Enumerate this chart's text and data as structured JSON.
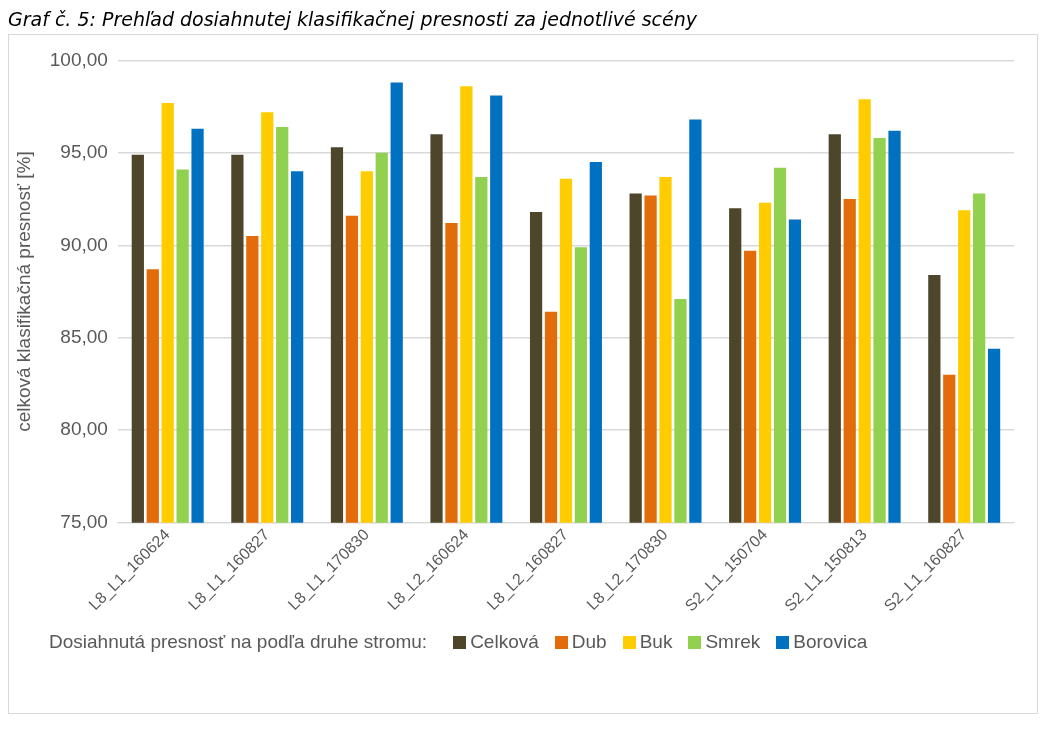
{
  "chart_data": {
    "type": "bar",
    "title": "Graf č. 5: Prehľad dosiahnutej klasifikačnej presnosti za jednotlivé scény",
    "ylabel": "celková klasifikačná presnosť [%]",
    "legend_title": "Dosiahnutá presnosť na podľa druhe stromu:",
    "categories": [
      "L8_L1_160624",
      "L8_L1_160827",
      "L8_L1_170830",
      "L8_L2_160624",
      "L8_L2_160827",
      "L8_L2_170830",
      "S2_L1_150704",
      "S2_L1_150813",
      "S2_L1_160827"
    ],
    "series": [
      {
        "name": "Celková",
        "color": "#4d462b",
        "values": [
          94.9,
          94.9,
          95.3,
          96.0,
          91.8,
          92.8,
          92.0,
          96.0,
          88.4
        ]
      },
      {
        "name": "Dub",
        "color": "#e36c0a",
        "values": [
          88.7,
          90.5,
          91.6,
          91.2,
          86.4,
          92.7,
          89.7,
          92.5,
          83.0
        ]
      },
      {
        "name": "Buk",
        "color": "#ffcc00",
        "values": [
          97.7,
          97.2,
          94.0,
          98.6,
          93.6,
          93.7,
          92.3,
          97.9,
          91.9
        ]
      },
      {
        "name": "Smrek",
        "color": "#92d050",
        "values": [
          94.1,
          96.4,
          95.0,
          93.7,
          89.9,
          87.1,
          94.2,
          95.8,
          92.8
        ]
      },
      {
        "name": "Borovica",
        "color": "#0070c0",
        "values": [
          96.3,
          94.0,
          98.8,
          98.1,
          94.5,
          96.8,
          91.4,
          96.2,
          84.4
        ]
      }
    ],
    "ylim": [
      75,
      100
    ],
    "yticks": [
      {
        "value": 75,
        "label": "75,00"
      },
      {
        "value": 80,
        "label": "80,00"
      },
      {
        "value": 85,
        "label": "85,00"
      },
      {
        "value": 90,
        "label": "90,00"
      },
      {
        "value": 95,
        "label": "95,00"
      },
      {
        "value": 100,
        "label": "100,00"
      }
    ],
    "grid": "y",
    "legend": "bottom"
  }
}
